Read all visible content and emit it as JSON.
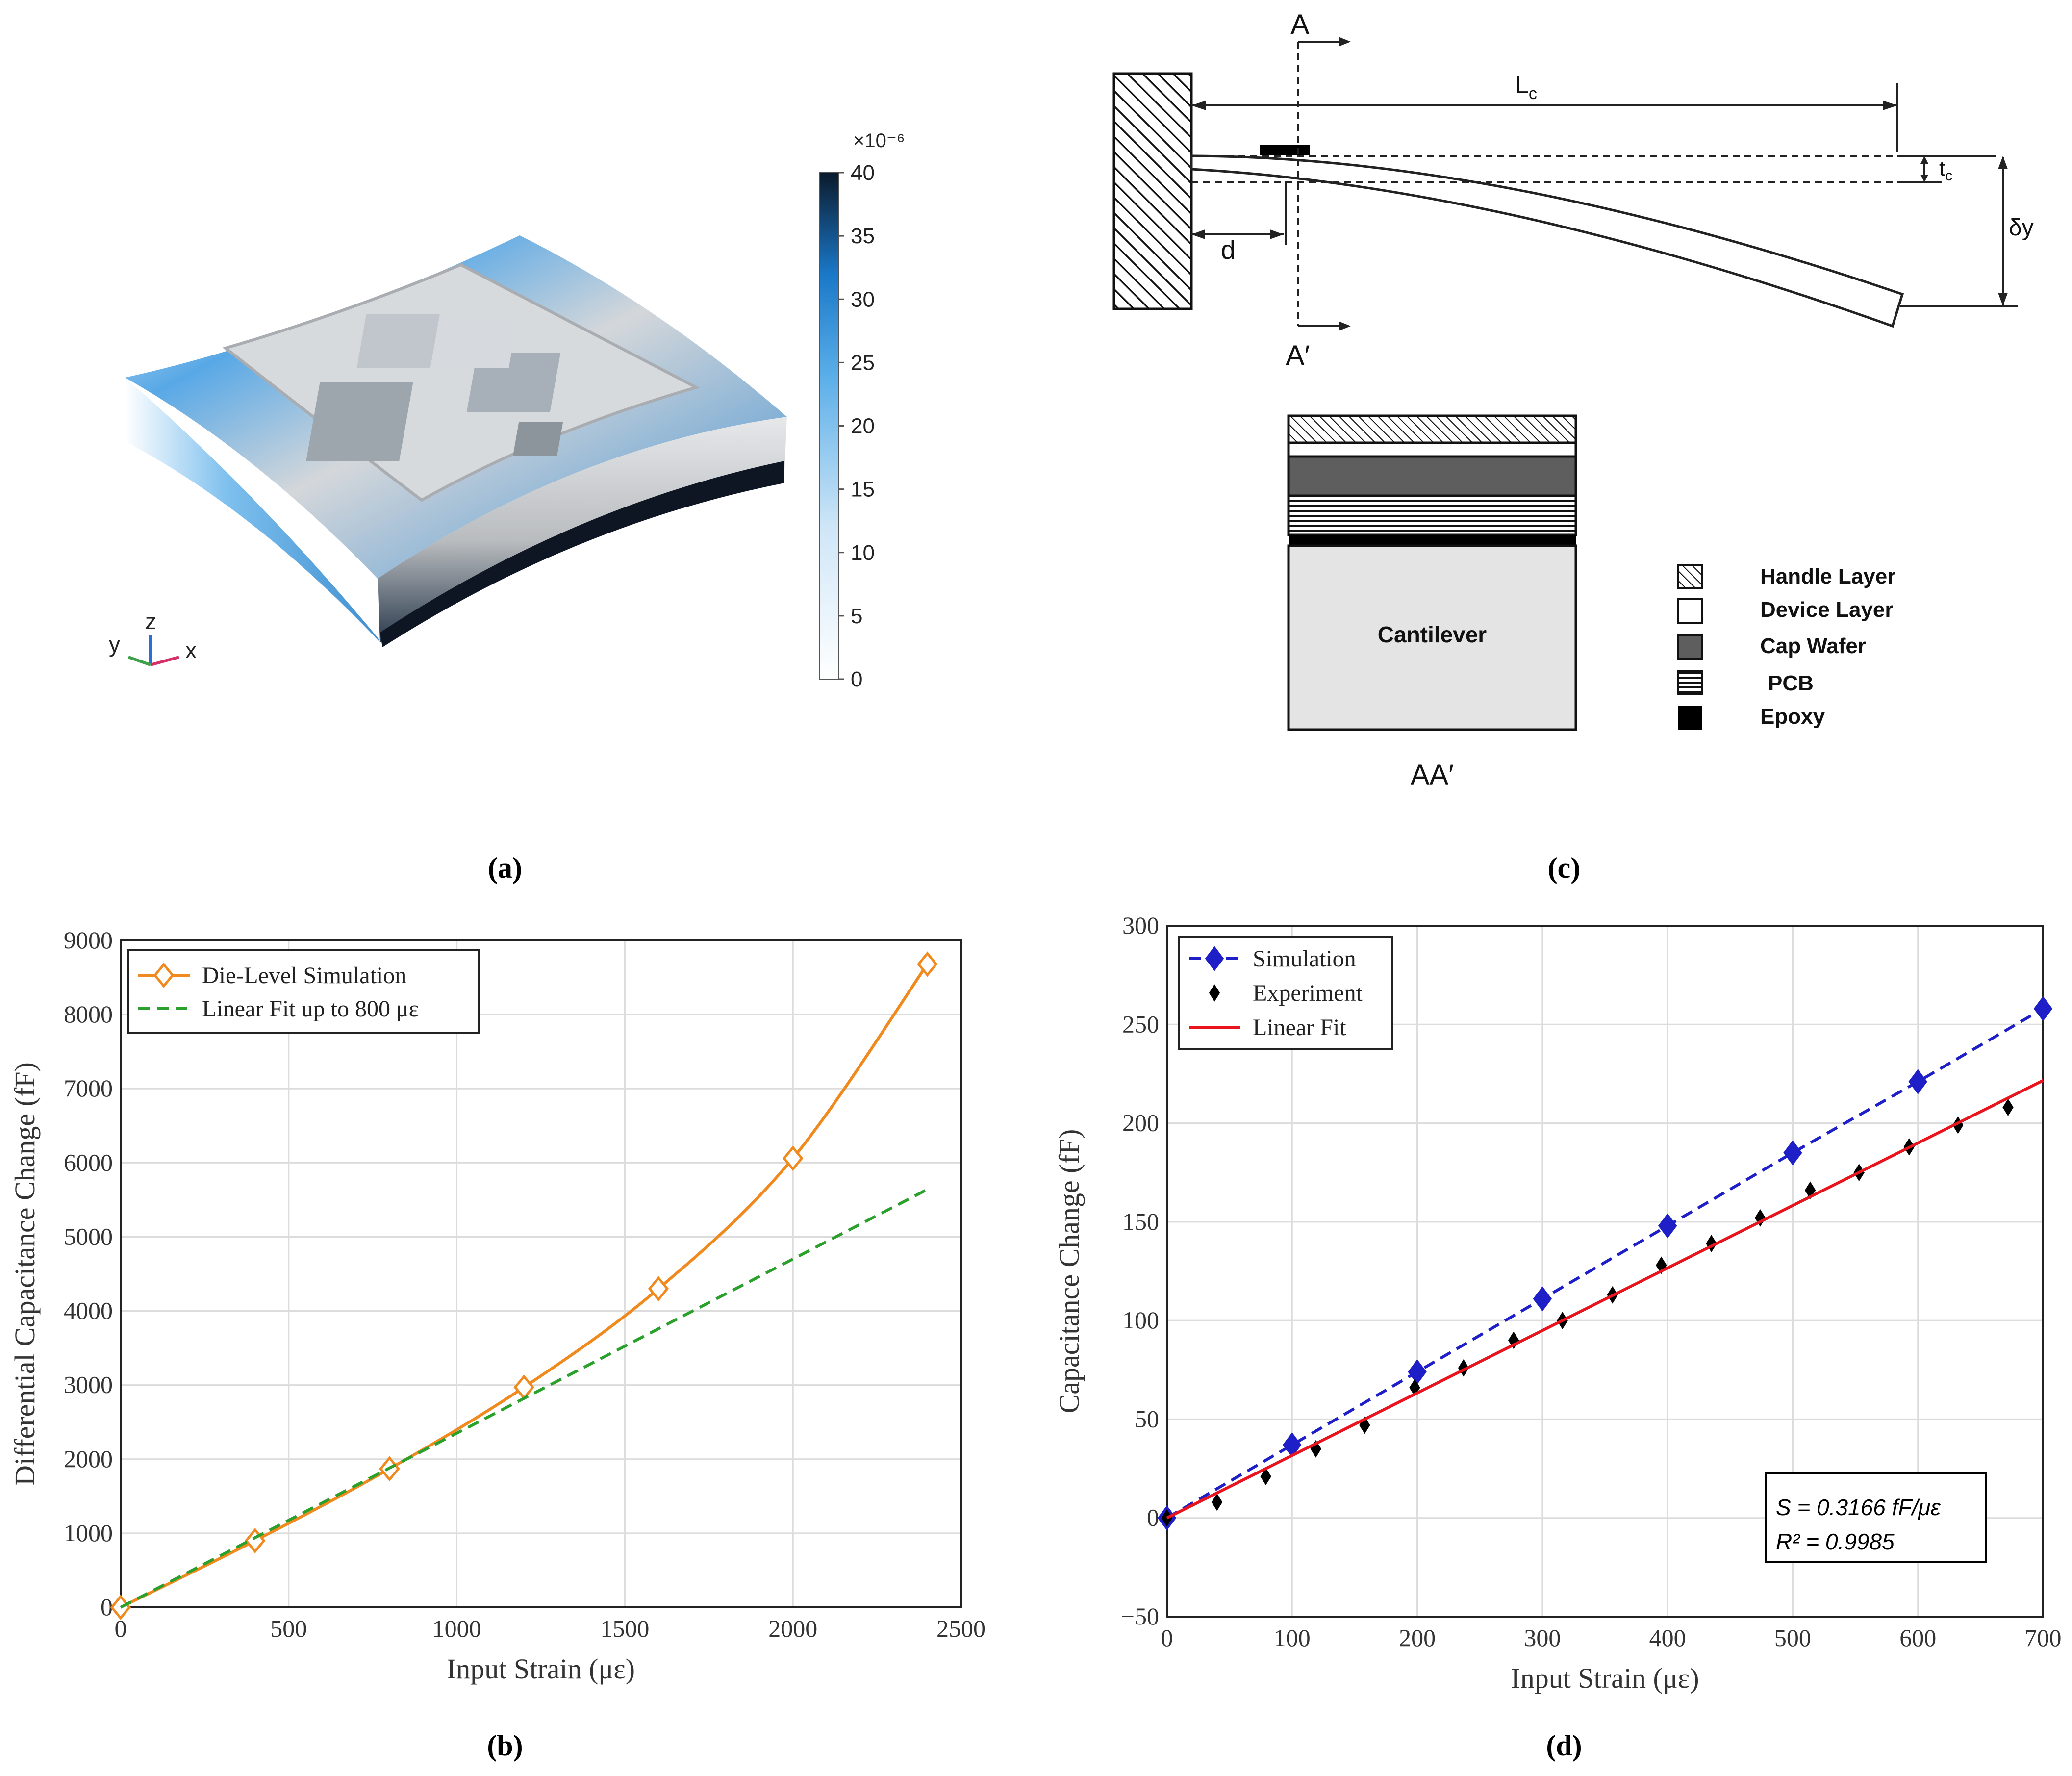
{
  "panels": {
    "a": {
      "label": "(a)"
    },
    "b": {
      "label": "(b)"
    },
    "c": {
      "label": "(c)"
    },
    "d": {
      "label": "(d)"
    }
  },
  "colorbar": {
    "multiplier": "×10⁻⁶",
    "ticks": [
      "0",
      "5",
      "10",
      "15",
      "20",
      "25",
      "30",
      "35",
      "40"
    ],
    "low_color": "#ffffff",
    "high_color": "#0b1a2c"
  },
  "axes_triad": {
    "y": "y",
    "z": "z",
    "x": "x"
  },
  "diagram": {
    "section_top": "A",
    "section_bottom": "A′",
    "length_label": "L",
    "length_sub": "c",
    "thickness_label": "t",
    "thickness_sub": "c",
    "deflection_label": "δy",
    "offset_label": "d",
    "cross_section_label": "AA′",
    "cantilever_label": "Cantilever",
    "legend": [
      {
        "label": "Handle Layer",
        "pattern": "diagonal"
      },
      {
        "label": "Device Layer",
        "pattern": "white"
      },
      {
        "label": "Cap Wafer",
        "pattern": "gray"
      },
      {
        "label": "PCB",
        "pattern": "horizontal"
      },
      {
        "label": "Epoxy",
        "pattern": "black"
      }
    ]
  },
  "colors": {
    "orange": "#f08a1e",
    "green": "#2ca02c",
    "blue": "#1f1fc8",
    "red": "#e8141e",
    "black": "#000000"
  },
  "chart_data": [
    {
      "id": "b",
      "type": "line",
      "title": "",
      "xlabel": "Input Strain (με)",
      "ylabel": "Differential Capacitance Change (fF)",
      "xlim": [
        0,
        2500
      ],
      "ylim": [
        0,
        9000
      ],
      "xticks": [
        0,
        500,
        1000,
        1500,
        2000,
        2500
      ],
      "yticks": [
        0,
        1000,
        2000,
        3000,
        4000,
        5000,
        6000,
        7000,
        8000,
        9000
      ],
      "grid": true,
      "legend_position": "top-left",
      "series": [
        {
          "name": "Die-Level Simulation",
          "marker": "diamond-open",
          "line": "solid",
          "x": [
            0,
            400,
            800,
            1200,
            1600,
            2000,
            2400
          ],
          "y": [
            0,
            900,
            1870,
            2970,
            4300,
            6060,
            8680
          ]
        },
        {
          "name": "Linear Fit up to 800 με",
          "marker": "none",
          "line": "dashed",
          "x": [
            0,
            2400
          ],
          "y": [
            0,
            5640
          ]
        }
      ]
    },
    {
      "id": "d",
      "type": "scatter",
      "title": "",
      "xlabel": "Input Strain (με)",
      "ylabel": "Capacitance Change (fF)",
      "xlim": [
        0,
        700
      ],
      "ylim": [
        -50,
        300
      ],
      "xticks": [
        0,
        100,
        200,
        300,
        400,
        500,
        600,
        700
      ],
      "yticks": [
        -50,
        0,
        50,
        100,
        150,
        200,
        250,
        300
      ],
      "grid": true,
      "legend_position": "top-left",
      "series": [
        {
          "name": "Simulation",
          "marker": "diamond-filled",
          "line": "dashed",
          "x": [
            0,
            100,
            200,
            300,
            400,
            500,
            600,
            700
          ],
          "y": [
            0,
            37,
            74,
            111,
            148,
            185,
            221,
            258
          ]
        },
        {
          "name": "Experiment",
          "marker": "diamond-small",
          "line": "none",
          "x": [
            0,
            40,
            79,
            119,
            158,
            198,
            237,
            277,
            316,
            356,
            395,
            435,
            474,
            514,
            553,
            593,
            632,
            672
          ],
          "y": [
            0,
            8,
            21,
            35,
            47,
            66,
            76,
            90,
            100,
            113,
            128,
            139,
            152,
            166,
            175,
            188,
            199,
            208
          ]
        },
        {
          "name": "Linear Fit",
          "marker": "none",
          "line": "solid",
          "x": [
            0,
            700
          ],
          "y": [
            0,
            221.6
          ]
        }
      ],
      "annotation": {
        "sensitivity": "S = 0.3166 fF/με",
        "r2": "R² = 0.9985"
      }
    }
  ]
}
